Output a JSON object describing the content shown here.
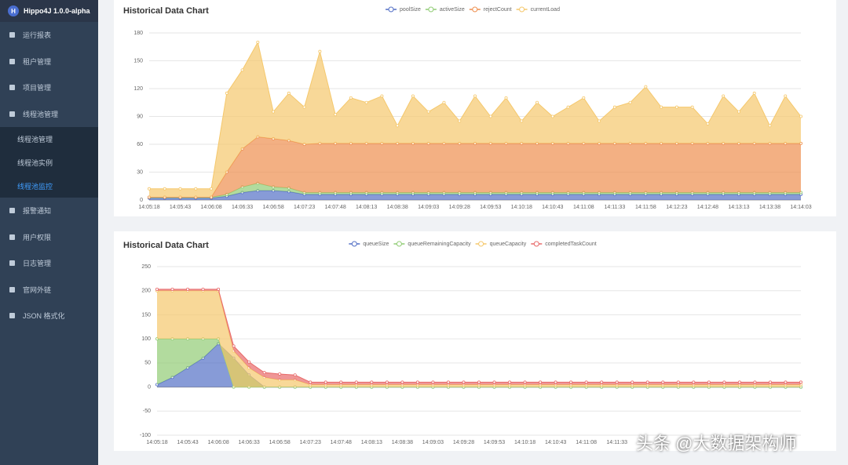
{
  "sidebar": {
    "title": "Hippo4J 1.0.0-alpha",
    "logo": "H",
    "menu": [
      "运行报表",
      "租户管理",
      "项目管理",
      "线程池管理"
    ],
    "submenu": [
      "线程池管理",
      "线程池实例",
      "线程池监控"
    ],
    "menu2": [
      "报警通知",
      "用户权限",
      "日志管理",
      "官网外链",
      "JSON 格式化"
    ]
  },
  "watermark": "头条 @大数据架构师",
  "chart_data": [
    {
      "type": "stacked-area",
      "title": "Historical Data Chart",
      "categories": [
        "14:05:18",
        null,
        "14:05:43",
        null,
        "14:06:08",
        null,
        "14:06:33",
        null,
        "14:06:58",
        null,
        "14:07:23",
        null,
        "14:07:48",
        null,
        "14:08:13",
        null,
        "14:08:38",
        null,
        "14:09:03",
        null,
        "14:09:28",
        null,
        "14:09:53",
        null,
        "14:10:18",
        null,
        "14:10:43",
        null,
        "14:11:08",
        null,
        "14:11:33",
        null,
        "14:11:58",
        null,
        "14:12:23",
        null,
        "14:12:48",
        null,
        "14:13:13",
        null,
        "14:13:38",
        null,
        "14:14:03"
      ],
      "ylim": [
        0,
        180
      ],
      "yticks": [
        0,
        30,
        60,
        90,
        120,
        150,
        180
      ],
      "grid": true,
      "series": [
        {
          "name": "poolSize",
          "color": "#5470c6",
          "values": [
            2,
            2,
            2,
            2,
            2,
            4,
            8,
            10,
            10,
            9,
            6,
            6,
            6,
            6,
            6,
            6,
            6,
            6,
            6,
            6,
            6,
            6,
            6,
            6,
            6,
            6,
            6,
            6,
            6,
            6,
            6,
            6,
            6,
            6,
            6,
            6,
            6,
            6,
            6,
            6,
            6,
            6,
            6
          ]
        },
        {
          "name": "activeSize",
          "color": "#91cc75",
          "values": [
            1,
            1,
            1,
            1,
            1,
            2,
            6,
            8,
            4,
            4,
            2,
            2,
            2,
            2,
            2,
            2,
            2,
            2,
            2,
            2,
            2,
            2,
            2,
            2,
            2,
            2,
            2,
            2,
            2,
            2,
            2,
            2,
            2,
            2,
            2,
            2,
            2,
            2,
            2,
            2,
            2,
            2,
            2
          ]
        },
        {
          "name": "rejectCount",
          "color": "#ee8f4f",
          "values": [
            0,
            0,
            0,
            0,
            0,
            24,
            41,
            50,
            52,
            51,
            52,
            53,
            53,
            53,
            53,
            53,
            53,
            53,
            53,
            53,
            53,
            53,
            53,
            53,
            53,
            53,
            53,
            53,
            53,
            53,
            53,
            53,
            53,
            53,
            53,
            53,
            53,
            53,
            53,
            53,
            53,
            53,
            53
          ]
        },
        {
          "name": "currentLoad",
          "color": "#f5c86c",
          "values": [
            9,
            9,
            9,
            9,
            9,
            85,
            85,
            102,
            29,
            51,
            40,
            99,
            31,
            49,
            44,
            51,
            19,
            51,
            34,
            44,
            24,
            51,
            29,
            49,
            24,
            44,
            29,
            39,
            49,
            24,
            39,
            44,
            61,
            39,
            39,
            39,
            21,
            51,
            34,
            54,
            19,
            51,
            29
          ]
        }
      ]
    },
    {
      "type": "stacked-area",
      "title": "Historical Data Chart",
      "categories": [
        "14:05:18",
        null,
        "14:05:43",
        null,
        "14:06:08",
        null,
        "14:06:33",
        null,
        "14:06:58",
        null,
        "14:07:23",
        null,
        "14:07:48",
        null,
        "14:08:13",
        null,
        "14:08:38",
        null,
        "14:09:03",
        null,
        "14:09:28",
        null,
        "14:09:53",
        null,
        "14:10:18",
        null,
        "14:10:43",
        null,
        "14:11:08",
        null,
        "14:11:33",
        null,
        null,
        null,
        null,
        null,
        null,
        null,
        null,
        null,
        null,
        null,
        null
      ],
      "ylim": [
        -100,
        250
      ],
      "yticks": [
        -100,
        -50,
        0,
        50,
        100,
        150,
        200,
        250
      ],
      "grid": true,
      "series": [
        {
          "name": "queueSize",
          "color": "#5470c6",
          "values": [
            5,
            20,
            40,
            60,
            90,
            60,
            25,
            0,
            0,
            0,
            0,
            0,
            0,
            0,
            0,
            0,
            0,
            0,
            0,
            0,
            0,
            0,
            0,
            0,
            0,
            0,
            0,
            0,
            0,
            0,
            0,
            0,
            0,
            0,
            0,
            0,
            0,
            0,
            0,
            0,
            0,
            0,
            0
          ]
        },
        {
          "name": "queueRemainingCapacity",
          "color": "#91cc75",
          "values": [
            95,
            80,
            60,
            40,
            10,
            -60,
            -25,
            0,
            0,
            0,
            0,
            0,
            0,
            0,
            0,
            0,
            0,
            0,
            0,
            0,
            0,
            0,
            0,
            0,
            0,
            0,
            0,
            0,
            0,
            0,
            0,
            0,
            0,
            0,
            0,
            0,
            0,
            0,
            0,
            0,
            0,
            0,
            0
          ]
        },
        {
          "name": "queueCapacity",
          "color": "#f5c86c",
          "values": [
            100,
            100,
            100,
            100,
            100,
            75,
            40,
            20,
            15,
            15,
            5,
            5,
            5,
            5,
            5,
            5,
            5,
            5,
            5,
            5,
            5,
            5,
            5,
            5,
            5,
            5,
            5,
            5,
            5,
            5,
            5,
            5,
            5,
            5,
            5,
            5,
            5,
            5,
            5,
            5,
            5,
            5,
            5
          ]
        },
        {
          "name": "completedTaskCount",
          "color": "#e86a6a",
          "values": [
            3,
            3,
            3,
            3,
            3,
            10,
            12,
            10,
            12,
            10,
            5,
            5,
            5,
            5,
            5,
            5,
            5,
            5,
            5,
            5,
            5,
            5,
            5,
            5,
            5,
            5,
            5,
            5,
            5,
            5,
            5,
            5,
            5,
            5,
            5,
            5,
            5,
            5,
            5,
            5,
            5,
            5,
            5
          ]
        }
      ]
    }
  ]
}
